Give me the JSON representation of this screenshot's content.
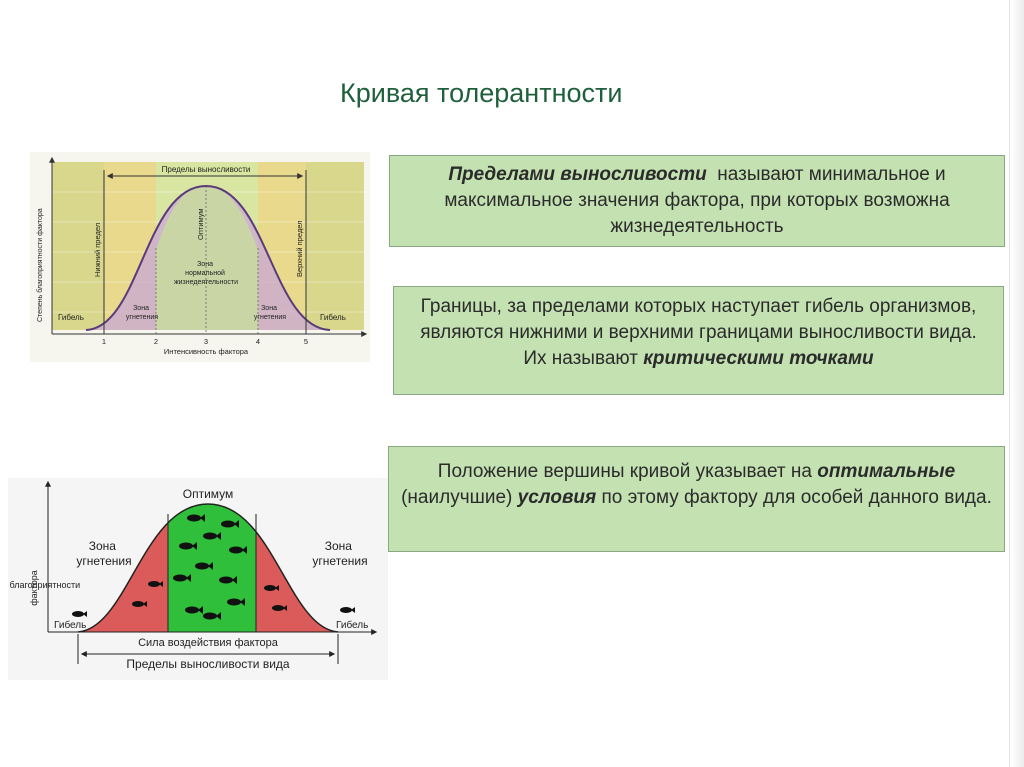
{
  "slide": {
    "title": "Кривая толерантности"
  },
  "text_blocks": {
    "endurance_definition": {
      "term": "Пределами выносливости",
      "text": "называют минимальное и максимальное значения фактора, при которых возможна жизнедеятельность"
    },
    "critical_points": {
      "text": "Границы, за пределами которых наступает гибель организмов, являются нижними и верхними границами выносливости вида. Их называют",
      "term": "критическими точками"
    },
    "optimum_position": {
      "text_before": "Положение вершины кривой указывает на",
      "term1": "оптимальные",
      "text_middle": "(наилучшие)",
      "term2": "условия",
      "text_after": "по этому фактору для особей данного вида."
    }
  },
  "diagram_top": {
    "endurance_limits": "Пределы выносливости",
    "y_axis": "Степень благоприятности фактора",
    "x_axis": "Интенсивность фактора",
    "lower_limit": "Нижний предел",
    "upper_limit": "Верхний предел",
    "optimum": "Оптимум",
    "normal_zone": [
      "Зона",
      "нормальной",
      "жизнедеятельности"
    ],
    "stress_zone": [
      "Зона",
      "угнетения"
    ],
    "death": "Гибель",
    "ticks": [
      "1",
      "2",
      "3",
      "4",
      "5"
    ]
  },
  "diagram_bottom": {
    "optimum": "Оптимум",
    "stress_zone": [
      "Зона",
      "угнетения"
    ],
    "y_axis": [
      "Степень благоприятности",
      "фактора"
    ],
    "death": "Гибель",
    "factor_strength": "Сила воздействия фактора",
    "endurance_limits": "Пределы выносливости вида"
  },
  "colors": {
    "title": "#1f5f3c",
    "box_fill": "#c4e1b2",
    "optimum_green": "#2fbf3a",
    "stress_red": "#db5a5a",
    "endurance_band": "#f0df8a"
  }
}
